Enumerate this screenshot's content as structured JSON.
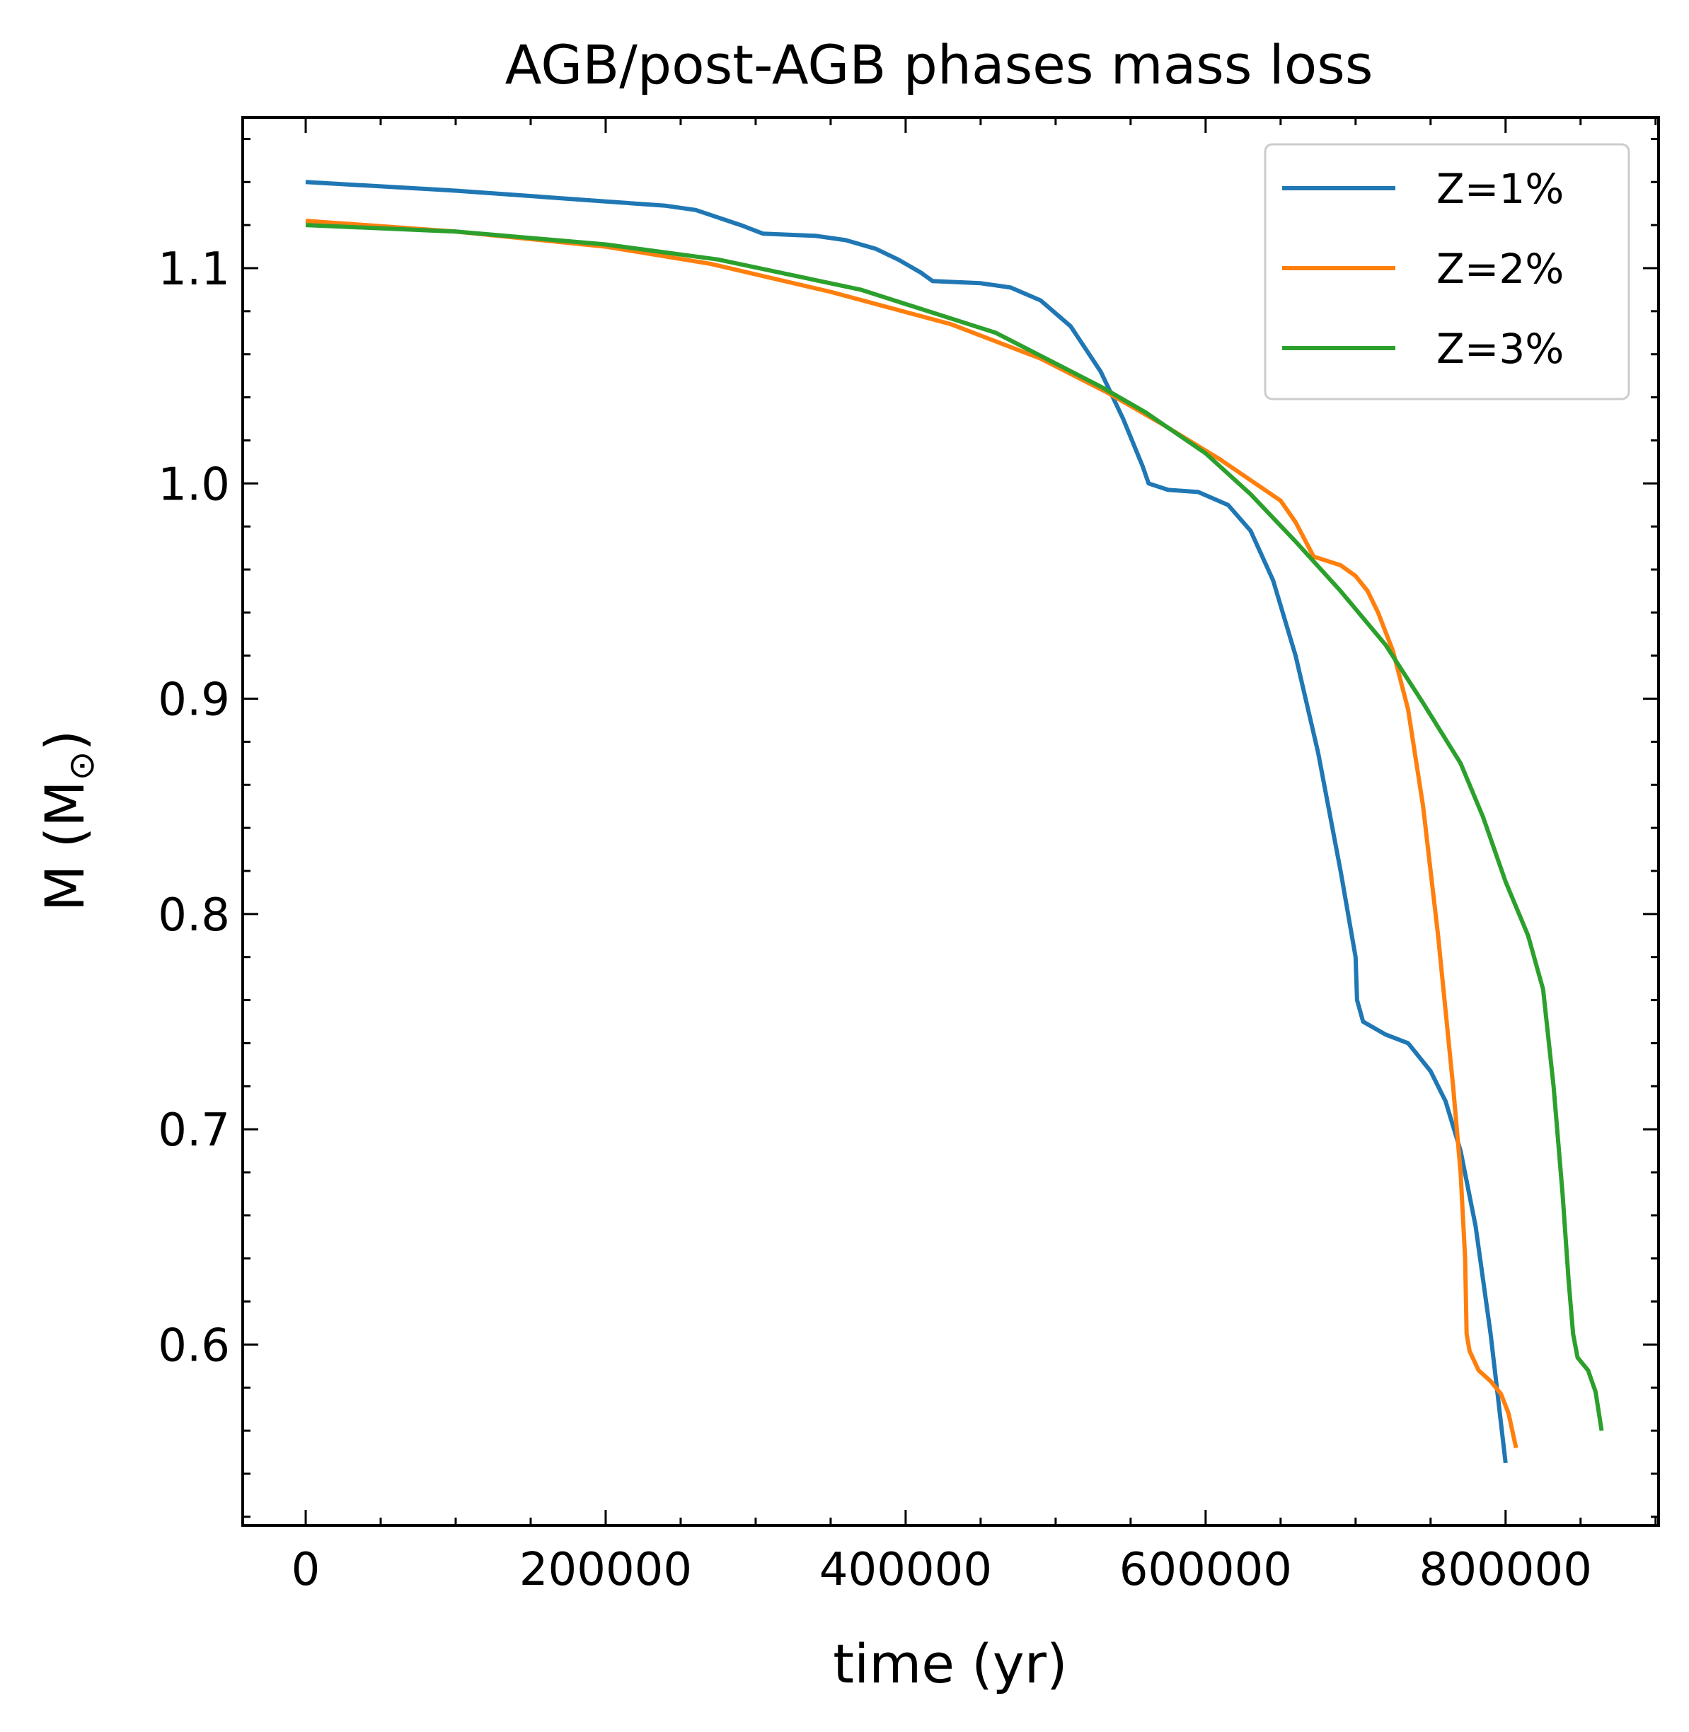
{
  "chart_data": {
    "type": "line",
    "title": "AGB/post-AGB phases mass loss",
    "xlabel": "time (yr)",
    "ylabel_main": "M (M",
    "ylabel_sub": "⊙",
    "ylabel_close": ")",
    "xlim": [
      -42000,
      902000
    ],
    "ylim": [
      0.516,
      1.17
    ],
    "xticks": [
      0,
      200000,
      400000,
      600000,
      800000
    ],
    "xtick_labels": [
      "0",
      "200000",
      "400000",
      "600000",
      "800000"
    ],
    "yticks": [
      0.6,
      0.7,
      0.8,
      0.9,
      1.0,
      1.1
    ],
    "ytick_labels": [
      "0.6",
      "0.7",
      "0.8",
      "0.9",
      "1.0",
      "1.1"
    ],
    "grid": false,
    "legend_position": "top-right",
    "series": [
      {
        "name": "Z=1%",
        "color": "#1f77b4",
        "points": [
          [
            0,
            1.14
          ],
          [
            100000,
            1.136
          ],
          [
            200000,
            1.131
          ],
          [
            240000,
            1.129
          ],
          [
            260000,
            1.127
          ],
          [
            290000,
            1.12
          ],
          [
            305000,
            1.116
          ],
          [
            340000,
            1.115
          ],
          [
            360000,
            1.113
          ],
          [
            380000,
            1.109
          ],
          [
            395000,
            1.104
          ],
          [
            410000,
            1.098
          ],
          [
            418000,
            1.094
          ],
          [
            450000,
            1.093
          ],
          [
            470000,
            1.091
          ],
          [
            490000,
            1.085
          ],
          [
            510000,
            1.073
          ],
          [
            530000,
            1.052
          ],
          [
            545000,
            1.03
          ],
          [
            558000,
            1.008
          ],
          [
            562000,
            1.0
          ],
          [
            575000,
            0.997
          ],
          [
            595000,
            0.996
          ],
          [
            615000,
            0.99
          ],
          [
            630000,
            0.978
          ],
          [
            645000,
            0.955
          ],
          [
            660000,
            0.92
          ],
          [
            675000,
            0.875
          ],
          [
            690000,
            0.82
          ],
          [
            700000,
            0.78
          ],
          [
            701000,
            0.76
          ],
          [
            705000,
            0.75
          ],
          [
            720000,
            0.744
          ],
          [
            735000,
            0.74
          ],
          [
            750000,
            0.727
          ],
          [
            760000,
            0.713
          ],
          [
            770000,
            0.69
          ],
          [
            780000,
            0.655
          ],
          [
            790000,
            0.605
          ],
          [
            800000,
            0.545
          ]
        ]
      },
      {
        "name": "Z=2%",
        "color": "#ff7f0e",
        "points": [
          [
            0,
            1.122
          ],
          [
            100000,
            1.117
          ],
          [
            200000,
            1.11
          ],
          [
            270000,
            1.102
          ],
          [
            350000,
            1.089
          ],
          [
            430000,
            1.074
          ],
          [
            490000,
            1.058
          ],
          [
            535000,
            1.042
          ],
          [
            570000,
            1.028
          ],
          [
            610000,
            1.011
          ],
          [
            650000,
            0.992
          ],
          [
            660000,
            0.982
          ],
          [
            672000,
            0.966
          ],
          [
            690000,
            0.962
          ],
          [
            700000,
            0.957
          ],
          [
            708000,
            0.95
          ],
          [
            715000,
            0.94
          ],
          [
            725000,
            0.922
          ],
          [
            735000,
            0.895
          ],
          [
            745000,
            0.85
          ],
          [
            755000,
            0.79
          ],
          [
            765000,
            0.72
          ],
          [
            770000,
            0.68
          ],
          [
            773000,
            0.64
          ],
          [
            774000,
            0.605
          ],
          [
            776000,
            0.597
          ],
          [
            782000,
            0.588
          ],
          [
            790000,
            0.583
          ],
          [
            797000,
            0.577
          ],
          [
            802000,
            0.568
          ],
          [
            807000,
            0.552
          ]
        ]
      },
      {
        "name": "Z=3%",
        "color": "#2ca02c",
        "points": [
          [
            0,
            1.12
          ],
          [
            100000,
            1.117
          ],
          [
            200000,
            1.111
          ],
          [
            275000,
            1.104
          ],
          [
            370000,
            1.09
          ],
          [
            460000,
            1.07
          ],
          [
            530000,
            1.045
          ],
          [
            560000,
            1.033
          ],
          [
            600000,
            1.014
          ],
          [
            630000,
            0.995
          ],
          [
            660000,
            0.973
          ],
          [
            690000,
            0.95
          ],
          [
            720000,
            0.925
          ],
          [
            745000,
            0.898
          ],
          [
            770000,
            0.87
          ],
          [
            785000,
            0.845
          ],
          [
            800000,
            0.815
          ],
          [
            815000,
            0.79
          ],
          [
            825000,
            0.765
          ],
          [
            832000,
            0.72
          ],
          [
            838000,
            0.67
          ],
          [
            842000,
            0.63
          ],
          [
            845000,
            0.605
          ],
          [
            848000,
            0.594
          ],
          [
            855000,
            0.588
          ],
          [
            860000,
            0.578
          ],
          [
            864000,
            0.56
          ]
        ]
      }
    ]
  }
}
